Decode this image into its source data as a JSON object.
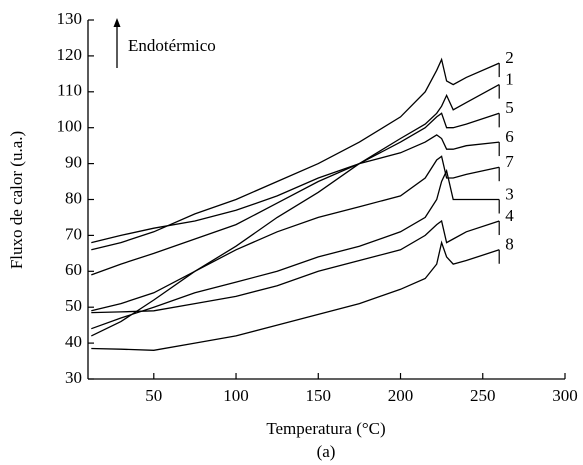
{
  "chart_data": {
    "type": "line",
    "annotation": "Endotérmico",
    "xlabel": "Temperatura (°C)",
    "ylabel": "Fluxo de calor (u.a.)",
    "caption": "(a)",
    "x": [
      12,
      30,
      50,
      75,
      100,
      125,
      150,
      175,
      200,
      215,
      222,
      225,
      228,
      232,
      240,
      260
    ],
    "series": [
      {
        "name": "2",
        "color": "#000000",
        "values": [
          66,
          68,
          71,
          76,
          80,
          85,
          90,
          96,
          103,
          110,
          116,
          119,
          113,
          112,
          114,
          118
        ]
      },
      {
        "name": "1",
        "color": "#000000",
        "values": [
          42,
          46,
          52,
          60,
          67,
          75,
          82,
          90,
          97,
          101,
          104,
          106,
          109,
          105,
          107,
          112
        ]
      },
      {
        "name": "5",
        "color": "#000000",
        "values": [
          59,
          62,
          65,
          69,
          73,
          79,
          85,
          90,
          96,
          100,
          103,
          104,
          100,
          100,
          101,
          104
        ]
      },
      {
        "name": "6",
        "color": "#000000",
        "values": [
          68,
          70,
          72,
          74,
          77,
          81,
          86,
          90,
          93,
          96,
          98,
          97,
          94,
          94,
          95,
          96
        ]
      },
      {
        "name": "7",
        "color": "#000000",
        "values": [
          49,
          51,
          54,
          60,
          66,
          71,
          75,
          78,
          81,
          86,
          91,
          92,
          86,
          86,
          87,
          89
        ]
      },
      {
        "name": "3",
        "color": "#000000",
        "values": [
          44,
          47,
          50,
          54,
          57,
          60,
          64,
          67,
          71,
          75,
          80,
          85,
          88,
          80,
          80,
          80
        ]
      },
      {
        "name": "4",
        "color": "#000000",
        "values": [
          48.5,
          48.7,
          49,
          51,
          53,
          56,
          60,
          63,
          66,
          70,
          73,
          74,
          68,
          69,
          71,
          74
        ]
      },
      {
        "name": "8",
        "color": "#000000",
        "values": [
          38.5,
          38.3,
          38,
          40,
          42,
          45,
          48,
          51,
          55,
          58,
          62,
          68,
          64,
          62,
          63,
          66
        ]
      }
    ],
    "xlim": [
      10,
      300
    ],
    "ylim": [
      30,
      130
    ],
    "xticks": [
      50,
      100,
      150,
      200,
      250,
      300
    ],
    "yticks": [
      30,
      40,
      50,
      60,
      70,
      80,
      90,
      100,
      110,
      120,
      130
    ]
  }
}
